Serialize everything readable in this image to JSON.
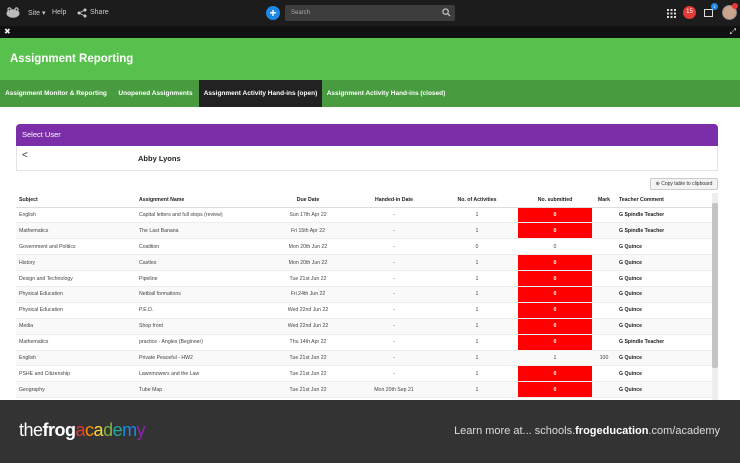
{
  "topbar": {
    "site_label": "Site",
    "help_label": "Help",
    "share_label": "Share",
    "search_placeholder": "Search",
    "notification_count": "15",
    "bell_count": "1",
    "accent": "#1e88e5"
  },
  "app": {
    "title": "Assignment Reporting",
    "tabs": [
      {
        "label": "Assignment Monitor & Reporting"
      },
      {
        "label": "Unopened Assignments"
      },
      {
        "label": "Assignment Activity Hand-ins (open)"
      },
      {
        "label": "Assignment Activity Hand-ins (closed)"
      }
    ],
    "active_tab": "Assignment Activity Hand-ins (open)",
    "panel_title": "Select User",
    "back_label": "<",
    "user_name": "Abby Lyons",
    "copy_button": "Copy table to clipboard",
    "columns": [
      "Subject",
      "Assignment Name",
      "Due Date",
      "Handed-in Date",
      "No. of Activities",
      "No. submitted",
      "Mark",
      "Teacher Comment"
    ],
    "rows": [
      {
        "subject": "English",
        "assignment": "Capital letters and full stops (review)",
        "due": "Sun 17th Apr 22",
        "handed": "-",
        "activities": "1",
        "submitted": "0",
        "mark": "",
        "teacher": "G Spindle Teacher",
        "flag": true
      },
      {
        "subject": "Mathematics",
        "assignment": "The Last Banana",
        "due": "Fri 15th Apr 22",
        "handed": "-",
        "activities": "1",
        "submitted": "0",
        "mark": "",
        "teacher": "G Spindle Teacher",
        "flag": true
      },
      {
        "subject": "Government and Politics",
        "assignment": "Coalition",
        "due": "Mon 20th Jun 22",
        "handed": "-",
        "activities": "0",
        "submitted": "0",
        "mark": "",
        "teacher": "G Quince",
        "flag": false
      },
      {
        "subject": "History",
        "assignment": "Castles",
        "due": "Mon 20th Jun 22",
        "handed": "-",
        "activities": "1",
        "submitted": "0",
        "mark": "",
        "teacher": "G Quince",
        "flag": true
      },
      {
        "subject": "Design and Technology",
        "assignment": "Pipeline",
        "due": "Tue 21st Jun 22",
        "handed": "-",
        "activities": "1",
        "submitted": "0",
        "mark": "",
        "teacher": "G Quince",
        "flag": true
      },
      {
        "subject": "Physical Education",
        "assignment": "Netball formations",
        "due": "Fri 24th Jun 22",
        "handed": "-",
        "activities": "1",
        "submitted": "0",
        "mark": "",
        "teacher": "G Quince",
        "flag": true
      },
      {
        "subject": "Physical Education",
        "assignment": "P.E.D.",
        "due": "Wed 22nd Jun 22",
        "handed": "-",
        "activities": "1",
        "submitted": "0",
        "mark": "",
        "teacher": "G Quince",
        "flag": true
      },
      {
        "subject": "Media",
        "assignment": "Shop front",
        "due": "Wed 22nd Jun 22",
        "handed": "-",
        "activities": "1",
        "submitted": "0",
        "mark": "",
        "teacher": "G Quince",
        "flag": true
      },
      {
        "subject": "Mathematics",
        "assignment": "practice - Angles (Beginner)",
        "due": "Thu 14th Apr 22",
        "handed": "-",
        "activities": "1",
        "submitted": "0",
        "mark": "",
        "teacher": "G Spindle Teacher",
        "flag": true
      },
      {
        "subject": "English",
        "assignment": "Private Peaceful - HW2",
        "due": "Tue 21st Jun 22",
        "handed": "-",
        "activities": "1",
        "submitted": "1",
        "mark": "100",
        "teacher": "G Quince",
        "flag": false
      },
      {
        "subject": "PSHE and Citizenship",
        "assignment": "Lawnmowers and the Law",
        "due": "Tue 21st Jun 22",
        "handed": "-",
        "activities": "1",
        "submitted": "0",
        "mark": "",
        "teacher": "G Quince",
        "flag": true
      },
      {
        "subject": "Geography",
        "assignment": "Tube Map",
        "due": "Tue 21st Jun 22",
        "handed": "Mon 20th Sep 21",
        "activities": "1",
        "submitted": "0",
        "mark": "",
        "teacher": "G Quince",
        "flag": true
      }
    ]
  },
  "footer": {
    "brand_the": "the",
    "brand_frog": "frog",
    "brand_academy": "academy",
    "learn_prefix": "Learn more at... schools.",
    "learn_domain": "frogeducation",
    "learn_suffix": ".com/academy",
    "academy_colors": [
      "#e53935",
      "#fb8c00",
      "#fdd835",
      "#7cb342",
      "#26a69a",
      "#1e88e5",
      "#8e24aa"
    ]
  }
}
